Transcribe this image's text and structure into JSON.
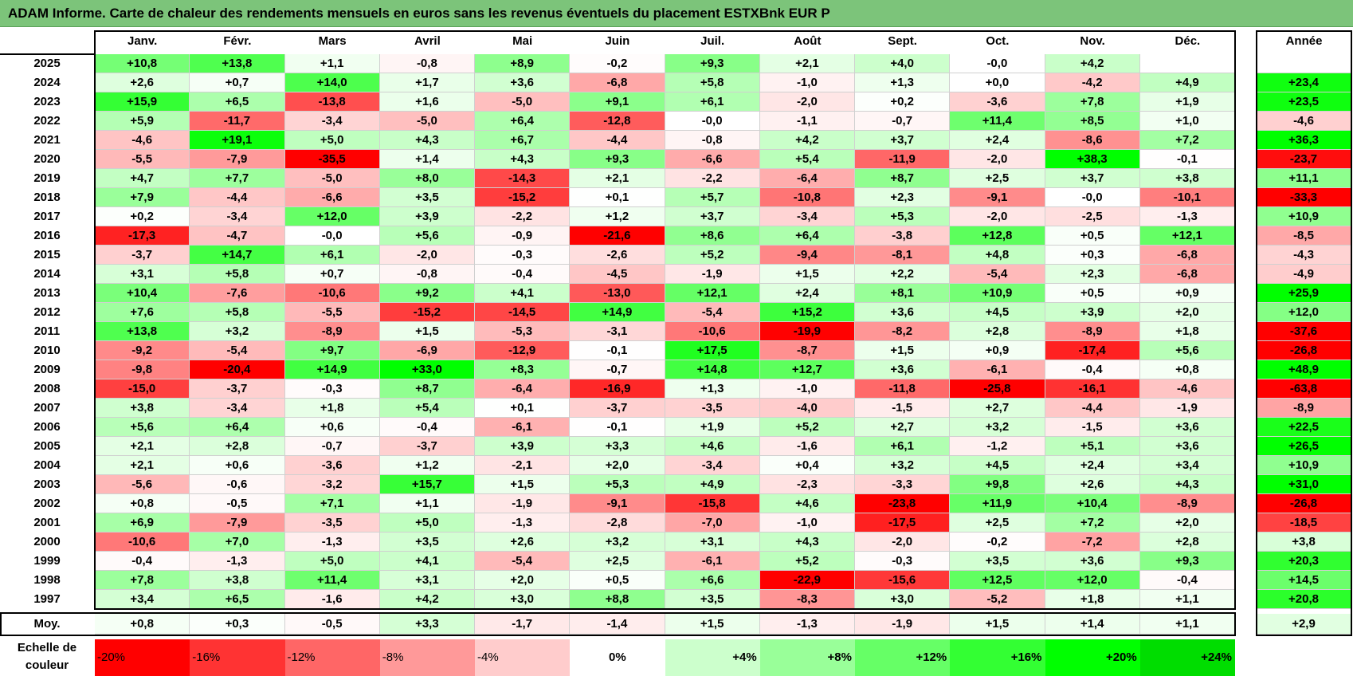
{
  "title": "ADAM Informe. Carte de chaleur des rendements mensuels en euros sans les revenus éventuels du placement ESTXBnk EUR P",
  "chart_data": {
    "type": "heatmap",
    "title": "ADAM Informe. Carte de chaleur des rendements mensuels en euros sans les revenus éventuels du placement ESTXBnk EUR P",
    "columns": [
      "Janv.",
      "Févr.",
      "Mars",
      "Avril",
      "Mai",
      "Juin",
      "Juil.",
      "Août",
      "Sept.",
      "Oct.",
      "Nov.",
      "Déc."
    ],
    "annual_header": "Année",
    "rows": [
      {
        "year": "2025",
        "values": [
          "+10,8",
          "+13,8",
          "+1,1",
          "-0,8",
          "+8,9",
          "-0,2",
          "+9,3",
          "+2,1",
          "+4,0",
          "-0,0",
          "+4,2",
          ""
        ],
        "annual": ""
      },
      {
        "year": "2024",
        "values": [
          "+2,6",
          "+0,7",
          "+14,0",
          "+1,7",
          "+3,6",
          "-6,8",
          "+5,8",
          "-1,0",
          "+1,3",
          "+0,0",
          "-4,2",
          "+4,9"
        ],
        "annual": "+23,4"
      },
      {
        "year": "2023",
        "values": [
          "+15,9",
          "+6,5",
          "-13,8",
          "+1,6",
          "-5,0",
          "+9,1",
          "+6,1",
          "-2,0",
          "+0,2",
          "-3,6",
          "+7,8",
          "+1,9"
        ],
        "annual": "+23,5"
      },
      {
        "year": "2022",
        "values": [
          "+5,9",
          "-11,7",
          "-3,4",
          "-5,0",
          "+6,4",
          "-12,8",
          "-0,0",
          "-1,1",
          "-0,7",
          "+11,4",
          "+8,5",
          "+1,0"
        ],
        "annual": "-4,6"
      },
      {
        "year": "2021",
        "values": [
          "-4,6",
          "+19,1",
          "+5,0",
          "+4,3",
          "+6,7",
          "-4,4",
          "-0,8",
          "+4,2",
          "+3,7",
          "+2,4",
          "-8,6",
          "+7,2"
        ],
        "annual": "+36,3"
      },
      {
        "year": "2020",
        "values": [
          "-5,5",
          "-7,9",
          "-35,5",
          "+1,4",
          "+4,3",
          "+9,3",
          "-6,6",
          "+5,4",
          "-11,9",
          "-2,0",
          "+38,3",
          "-0,1"
        ],
        "annual": "-23,7"
      },
      {
        "year": "2019",
        "values": [
          "+4,7",
          "+7,7",
          "-5,0",
          "+8,0",
          "-14,3",
          "+2,1",
          "-2,2",
          "-6,4",
          "+8,7",
          "+2,5",
          "+3,7",
          "+3,8"
        ],
        "annual": "+11,1"
      },
      {
        "year": "2018",
        "values": [
          "+7,9",
          "-4,4",
          "-6,6",
          "+3,5",
          "-15,2",
          "+0,1",
          "+5,7",
          "-10,8",
          "+2,3",
          "-9,1",
          "-0,0",
          "-10,1"
        ],
        "annual": "-33,3"
      },
      {
        "year": "2017",
        "values": [
          "+0,2",
          "-3,4",
          "+12,0",
          "+3,9",
          "-2,2",
          "+1,2",
          "+3,7",
          "-3,4",
          "+5,3",
          "-2,0",
          "-2,5",
          "-1,3"
        ],
        "annual": "+10,9"
      },
      {
        "year": "2016",
        "values": [
          "-17,3",
          "-4,7",
          "-0,0",
          "+5,6",
          "-0,9",
          "-21,6",
          "+8,6",
          "+6,4",
          "-3,8",
          "+12,8",
          "+0,5",
          "+12,1"
        ],
        "annual": "-8,5"
      },
      {
        "year": "2015",
        "values": [
          "-3,7",
          "+14,7",
          "+6,1",
          "-2,0",
          "-0,3",
          "-2,6",
          "+5,2",
          "-9,4",
          "-8,1",
          "+4,8",
          "+0,3",
          "-6,8"
        ],
        "annual": "-4,3"
      },
      {
        "year": "2014",
        "values": [
          "+3,1",
          "+5,8",
          "+0,7",
          "-0,8",
          "-0,4",
          "-4,5",
          "-1,9",
          "+1,5",
          "+2,2",
          "-5,4",
          "+2,3",
          "-6,8"
        ],
        "annual": "-4,9"
      },
      {
        "year": "2013",
        "values": [
          "+10,4",
          "-7,6",
          "-10,6",
          "+9,2",
          "+4,1",
          "-13,0",
          "+12,1",
          "+2,4",
          "+8,1",
          "+10,9",
          "+0,5",
          "+0,9"
        ],
        "annual": "+25,9"
      },
      {
        "year": "2012",
        "values": [
          "+7,6",
          "+5,8",
          "-5,5",
          "-15,2",
          "-14,5",
          "+14,9",
          "-5,4",
          "+15,2",
          "+3,6",
          "+4,5",
          "+3,9",
          "+2,0"
        ],
        "annual": "+12,0"
      },
      {
        "year": "2011",
        "values": [
          "+13,8",
          "+3,2",
          "-8,9",
          "+1,5",
          "-5,3",
          "-3,1",
          "-10,6",
          "-19,9",
          "-8,2",
          "+2,8",
          "-8,9",
          "+1,8"
        ],
        "annual": "-37,6"
      },
      {
        "year": "2010",
        "values": [
          "-9,2",
          "-5,4",
          "+9,7",
          "-6,9",
          "-12,9",
          "-0,1",
          "+17,5",
          "-8,7",
          "+1,5",
          "+0,9",
          "-17,4",
          "+5,6"
        ],
        "annual": "-26,8"
      },
      {
        "year": "2009",
        "values": [
          "-9,8",
          "-20,4",
          "+14,9",
          "+33,0",
          "+8,3",
          "-0,7",
          "+14,8",
          "+12,7",
          "+3,6",
          "-6,1",
          "-0,4",
          "+0,8"
        ],
        "annual": "+48,9"
      },
      {
        "year": "2008",
        "values": [
          "-15,0",
          "-3,7",
          "-0,3",
          "+8,7",
          "-6,4",
          "-16,9",
          "+1,3",
          "-1,0",
          "-11,8",
          "-25,8",
          "-16,1",
          "-4,6"
        ],
        "annual": "-63,8"
      },
      {
        "year": "2007",
        "values": [
          "+3,8",
          "-3,4",
          "+1,8",
          "+5,4",
          "+0,1",
          "-3,7",
          "-3,5",
          "-4,0",
          "-1,5",
          "+2,7",
          "-4,4",
          "-1,9"
        ],
        "annual": "-8,9"
      },
      {
        "year": "2006",
        "values": [
          "+5,6",
          "+6,4",
          "+0,6",
          "-0,4",
          "-6,1",
          "-0,1",
          "+1,9",
          "+5,2",
          "+2,7",
          "+3,2",
          "-1,5",
          "+3,6"
        ],
        "annual": "+22,5"
      },
      {
        "year": "2005",
        "values": [
          "+2,1",
          "+2,8",
          "-0,7",
          "-3,7",
          "+3,9",
          "+3,3",
          "+4,6",
          "-1,6",
          "+6,1",
          "-1,2",
          "+5,1",
          "+3,6"
        ],
        "annual": "+26,5"
      },
      {
        "year": "2004",
        "values": [
          "+2,1",
          "+0,6",
          "-3,6",
          "+1,2",
          "-2,1",
          "+2,0",
          "-3,4",
          "+0,4",
          "+3,2",
          "+4,5",
          "+2,4",
          "+3,4"
        ],
        "annual": "+10,9"
      },
      {
        "year": "2003",
        "values": [
          "-5,6",
          "-0,6",
          "-3,2",
          "+15,7",
          "+1,5",
          "+5,3",
          "+4,9",
          "-2,3",
          "-3,3",
          "+9,8",
          "+2,6",
          "+4,3"
        ],
        "annual": "+31,0"
      },
      {
        "year": "2002",
        "values": [
          "+0,8",
          "-0,5",
          "+7,1",
          "+1,1",
          "-1,9",
          "-9,1",
          "-15,8",
          "+4,6",
          "-23,8",
          "+11,9",
          "+10,4",
          "-8,9"
        ],
        "annual": "-26,8"
      },
      {
        "year": "2001",
        "values": [
          "+6,9",
          "-7,9",
          "-3,5",
          "+5,0",
          "-1,3",
          "-2,8",
          "-7,0",
          "-1,0",
          "-17,5",
          "+2,5",
          "+7,2",
          "+2,0"
        ],
        "annual": "-18,5"
      },
      {
        "year": "2000",
        "values": [
          "-10,6",
          "+7,0",
          "-1,3",
          "+3,5",
          "+2,6",
          "+3,2",
          "+3,1",
          "+4,3",
          "-2,0",
          "-0,2",
          "-7,2",
          "+2,8"
        ],
        "annual": "+3,8"
      },
      {
        "year": "1999",
        "values": [
          "-0,4",
          "-1,3",
          "+5,0",
          "+4,1",
          "-5,4",
          "+2,5",
          "-6,1",
          "+5,2",
          "-0,3",
          "+3,5",
          "+3,6",
          "+9,3"
        ],
        "annual": "+20,3"
      },
      {
        "year": "1998",
        "values": [
          "+7,8",
          "+3,8",
          "+11,4",
          "+3,1",
          "+2,0",
          "+0,5",
          "+6,6",
          "-22,9",
          "-15,6",
          "+12,5",
          "+12,0",
          "-0,4"
        ],
        "annual": "+14,5"
      },
      {
        "year": "1997",
        "values": [
          "+3,4",
          "+6,5",
          "-1,6",
          "+4,2",
          "+3,0",
          "+8,8",
          "+3,5",
          "-8,3",
          "+3,0",
          "-5,2",
          "+1,8",
          "+1,1"
        ],
        "annual": "+20,8"
      }
    ],
    "average": {
      "label": "Moy.",
      "values": [
        "+0,8",
        "+0,3",
        "-0,5",
        "+3,3",
        "-1,7",
        "-1,4",
        "+1,5",
        "-1,3",
        "-1,9",
        "+1,5",
        "+1,4",
        "+1,1"
      ],
      "annual": "+2,9"
    },
    "color_scale": {
      "label_line1": "Echelle de",
      "label_line2": "couleur",
      "stops": [
        {
          "text": "-20%",
          "value": -20,
          "color": "#ff0000"
        },
        {
          "text": "-16%",
          "value": -16,
          "color": "#ff3333"
        },
        {
          "text": "-12%",
          "value": -12,
          "color": "#ff6666"
        },
        {
          "text": "-8%",
          "value": -8,
          "color": "#ff9999"
        },
        {
          "text": "-4%",
          "value": -4,
          "color": "#ffcccc"
        },
        {
          "text": "0%",
          "value": 0,
          "color": "#ffffff"
        },
        {
          "text": "+4%",
          "value": 4,
          "color": "#ccffcc"
        },
        {
          "text": "+8%",
          "value": 8,
          "color": "#99ff99"
        },
        {
          "text": "+12%",
          "value": 12,
          "color": "#66ff66"
        },
        {
          "text": "+16%",
          "value": 16,
          "color": "#33ff33"
        },
        {
          "text": "+20%",
          "value": 20,
          "color": "#00ff00"
        },
        {
          "text": "+24%",
          "value": 24,
          "color": "#00dd00"
        }
      ]
    }
  }
}
